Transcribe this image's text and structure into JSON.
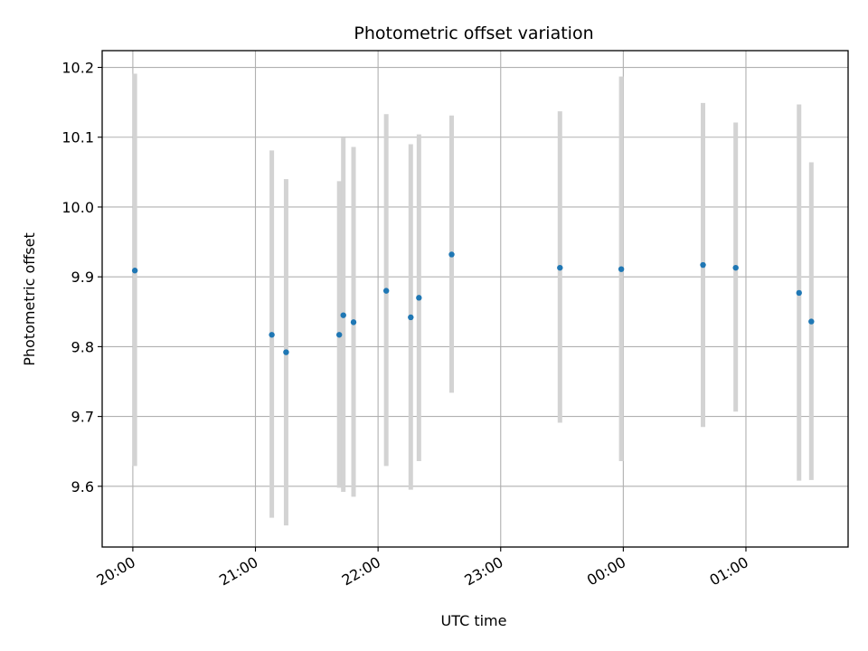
{
  "chart_data": {
    "type": "scatter",
    "title": "Photometric offset variation",
    "xlabel": "UTC time",
    "ylabel": "Photometric offset",
    "x_axis_kind": "time",
    "xlim": [
      "19:45",
      "01:50"
    ],
    "ylim": [
      9.513,
      10.224
    ],
    "grid": true,
    "x_tick_labels": [
      "20:00",
      "21:00",
      "22:00",
      "23:00",
      "00:00",
      "01:00"
    ],
    "x_ticks": [
      "20:00",
      "21:00",
      "22:00",
      "23:00",
      "00:00",
      "01:00"
    ],
    "y_tick_labels": [
      "9.6",
      "9.7",
      "9.8",
      "9.9",
      "10.0",
      "10.1",
      "10.2"
    ],
    "y_ticks": [
      9.6,
      9.7,
      9.8,
      9.9,
      10.0,
      10.1,
      10.2
    ],
    "point_color": "#1f77b4",
    "errorbar_color": "#d3d3d3",
    "points": [
      {
        "x": "20:01",
        "y": 9.909,
        "lo": 9.629,
        "hi": 10.191
      },
      {
        "x": "21:08",
        "y": 9.817,
        "lo": 9.555,
        "hi": 10.081
      },
      {
        "x": "21:15",
        "y": 9.792,
        "lo": 9.544,
        "hi": 10.04
      },
      {
        "x": "21:41",
        "y": 9.817,
        "lo": 9.598,
        "hi": 10.037
      },
      {
        "x": "21:43",
        "y": 9.845,
        "lo": 9.592,
        "hi": 10.099
      },
      {
        "x": "21:48",
        "y": 9.835,
        "lo": 9.585,
        "hi": 10.086
      },
      {
        "x": "22:04",
        "y": 9.88,
        "lo": 9.629,
        "hi": 10.133
      },
      {
        "x": "22:16",
        "y": 9.842,
        "lo": 9.595,
        "hi": 10.09
      },
      {
        "x": "22:20",
        "y": 9.87,
        "lo": 9.636,
        "hi": 10.104
      },
      {
        "x": "22:36",
        "y": 9.932,
        "lo": 9.734,
        "hi": 10.131
      },
      {
        "x": "23:29",
        "y": 9.913,
        "lo": 9.691,
        "hi": 10.137
      },
      {
        "x": "23:59",
        "y": 9.911,
        "lo": 9.636,
        "hi": 10.187
      },
      {
        "x": "00:39",
        "y": 9.917,
        "lo": 9.685,
        "hi": 10.149
      },
      {
        "x": "00:55",
        "y": 9.913,
        "lo": 9.707,
        "hi": 10.121
      },
      {
        "x": "01:26",
        "y": 9.877,
        "lo": 9.608,
        "hi": 10.147
      },
      {
        "x": "01:32",
        "y": 9.836,
        "lo": 9.609,
        "hi": 10.064
      }
    ]
  }
}
